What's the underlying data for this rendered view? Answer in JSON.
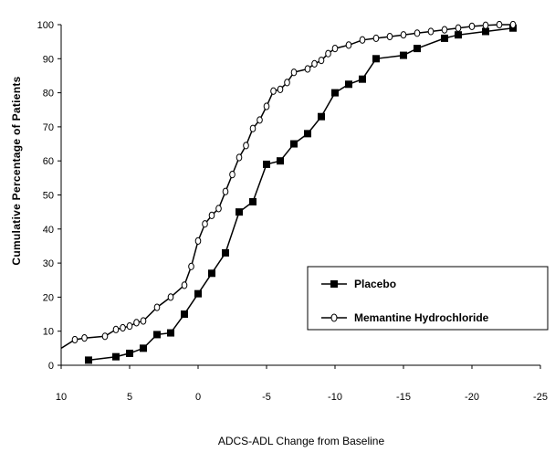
{
  "chart_data": {
    "type": "line",
    "title": "",
    "xlabel": "ADCS-ADL Change from Baseline",
    "ylabel": "Cumulative Percentage of Patients",
    "xlim": [
      10,
      -25
    ],
    "ylim": [
      0,
      100
    ],
    "xticks": [
      10,
      5,
      0,
      -5,
      -10,
      -15,
      -20,
      -25
    ],
    "yticks": [
      0,
      10,
      20,
      30,
      40,
      50,
      60,
      70,
      80,
      90,
      100
    ],
    "xtick_labels": [
      "10",
      "5",
      "0",
      "-5",
      "-10",
      "-15",
      "-20",
      "-25"
    ],
    "ytick_labels": [
      "0",
      "10",
      "20",
      "30",
      "40",
      "50",
      "60",
      "70",
      "80",
      "90",
      "100"
    ],
    "legend_position": "lower-right",
    "series": [
      {
        "name": "Placebo",
        "marker": "square",
        "color": "#000000",
        "x": [
          8,
          6,
          5,
          4,
          3,
          2,
          1,
          0,
          -1,
          -2,
          -3,
          -4,
          -5,
          -6,
          -7,
          -8,
          -9,
          -10,
          -11,
          -12,
          -13,
          -15,
          -16,
          -18,
          -19,
          -21,
          -23
        ],
        "y": [
          1.5,
          2.5,
          3.5,
          5,
          9,
          9.5,
          15,
          21,
          27,
          33,
          45,
          48,
          59,
          60,
          65,
          68,
          73,
          80,
          82.5,
          84,
          90,
          91,
          93,
          96,
          97,
          98,
          99
        ]
      },
      {
        "name": "Memantine Hydrochloride",
        "marker": "circle",
        "color": "#000000",
        "x": [
          10,
          9,
          8.3,
          6.8,
          6,
          5.5,
          5,
          4.5,
          4,
          3,
          2,
          1,
          0.5,
          0,
          -0.5,
          -1,
          -1.5,
          -2,
          -2.5,
          -3,
          -3.5,
          -4,
          -4.5,
          -5,
          -5.5,
          -6,
          -6.5,
          -7,
          -8,
          -8.5,
          -9,
          -9.5,
          -10,
          -11,
          -12,
          -13,
          -14,
          -15,
          -16,
          -17,
          -18,
          -19,
          -20,
          -21,
          -22,
          -23
        ],
        "y": [
          5,
          7.5,
          8,
          8.5,
          10.5,
          11,
          11.5,
          12.5,
          13,
          17,
          20,
          23.5,
          29,
          36.5,
          41.5,
          44,
          46,
          51,
          56,
          61,
          64.5,
          69.5,
          72,
          76,
          80.5,
          81,
          83,
          86,
          87,
          88.5,
          89.5,
          91.5,
          93,
          94,
          95.5,
          96,
          96.5,
          97,
          97.5,
          98,
          98.5,
          99,
          99.5,
          99.8,
          100,
          100
        ]
      }
    ]
  }
}
